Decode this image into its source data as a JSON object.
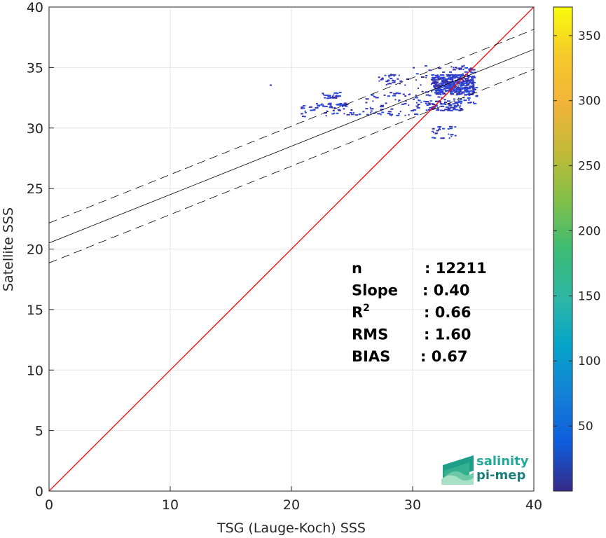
{
  "chart_data": {
    "type": "heatmap",
    "xlabel": "TSG (Lauge-Koch) SSS",
    "ylabel": "Satellite SSS",
    "xlim": [
      0,
      40
    ],
    "ylim": [
      0,
      40
    ],
    "xticks": [
      "0",
      "10",
      "20",
      "30",
      "40"
    ],
    "yticks": [
      "0",
      "5",
      "10",
      "15",
      "20",
      "25",
      "30",
      "35",
      "40"
    ],
    "grid": true,
    "colorbar": {
      "colormap": "parula",
      "range": [
        0,
        372
      ],
      "ticks": [
        "50",
        "100",
        "150",
        "200",
        "250",
        "300",
        "350"
      ],
      "tick_values": [
        50,
        100,
        150,
        200,
        250,
        300,
        350
      ]
    },
    "lines": {
      "identity": {
        "slope": 1,
        "intercept": 0,
        "color": "#ff0000"
      },
      "regression": {
        "slope": 0.4,
        "intercept": 20.5,
        "color": "#000000"
      },
      "confidence_offset": 1.65
    },
    "stats": [
      {
        "label": "n",
        "value": ": 12211"
      },
      {
        "label": "Slope",
        "value": ": 0.40"
      },
      {
        "label": "R",
        "sup": "2",
        "value": ": 0.66"
      },
      {
        "label": "RMS",
        "value": ": 1.60"
      },
      {
        "label": "BIAS",
        "value": ": 0.67"
      }
    ],
    "density_clusters": [
      {
        "x": [
          30.0,
          35.2
        ],
        "y": [
          32.0,
          35.3
        ],
        "density": 20
      },
      {
        "x": [
          31.5,
          35.0
        ],
        "y": [
          32.8,
          34.5
        ],
        "density": 60
      },
      {
        "x": [
          26.0,
          30.5
        ],
        "y": [
          31.0,
          33.0
        ],
        "density": 10
      },
      {
        "x": [
          20.5,
          26.0
        ],
        "y": [
          31.0,
          31.9
        ],
        "density": 6
      },
      {
        "x": [
          22.0,
          24.5
        ],
        "y": [
          31.7,
          32.1
        ],
        "density": 5
      },
      {
        "x": [
          27.0,
          29.5
        ],
        "y": [
          33.6,
          34.5
        ],
        "density": 5
      },
      {
        "x": [
          31.0,
          34.0
        ],
        "y": [
          31.5,
          32.3
        ],
        "density": 12
      },
      {
        "x": [
          31.5,
          33.5
        ],
        "y": [
          29.2,
          30.2
        ],
        "density": 4
      },
      {
        "x": [
          22.5,
          24.0
        ],
        "y": [
          32.5,
          33.0
        ],
        "density": 4
      }
    ],
    "isolated_points": [
      {
        "x": 18.2,
        "y": 33.6,
        "density": 4
      }
    ]
  },
  "logo": {
    "line1": "salinity",
    "line2": "pi-mep"
  }
}
